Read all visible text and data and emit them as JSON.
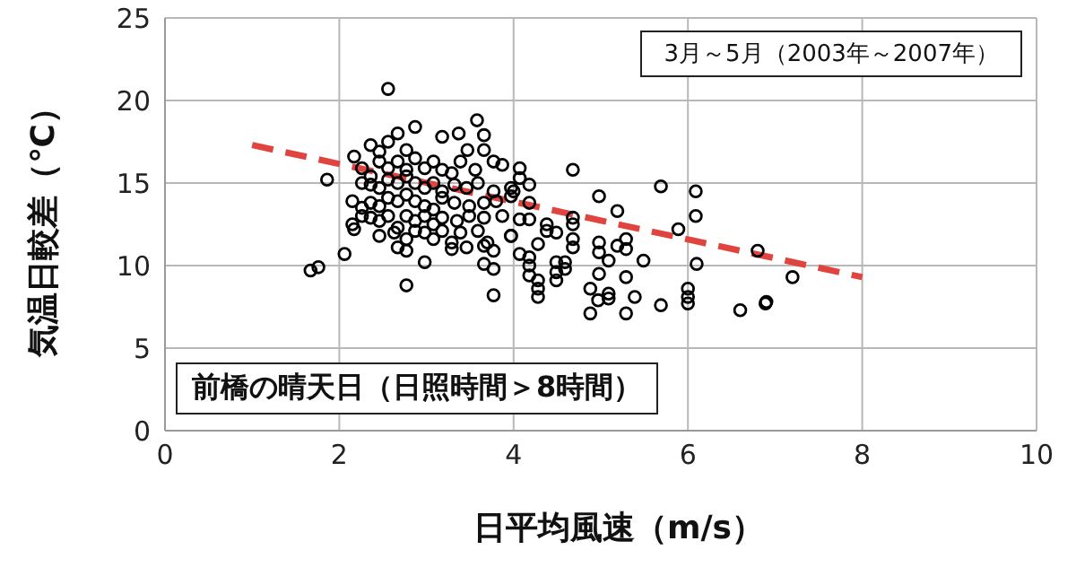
{
  "chart_data": {
    "type": "scatter",
    "xlabel": "日平均風速（m/s）",
    "ylabel": "気温日較差（℃）",
    "annotations": [
      "3月～5月（2003年～2007年）",
      "前橋の晴天日（日照時間＞8時間）"
    ],
    "xlim": [
      0,
      10
    ],
    "xticks": [
      0,
      2,
      4,
      6,
      8,
      10
    ],
    "ylim": [
      0,
      25
    ],
    "yticks": [
      0,
      5,
      10,
      15,
      20,
      25
    ],
    "grid": true,
    "marker": "circle",
    "series": [
      {
        "color": "#000000",
        "x": [
          1.67,
          1.76,
          1.86,
          2.06,
          2.56,
          2.77,
          2.98,
          3.77,
          3.58,
          2.36,
          2.46,
          2.56,
          2.67,
          2.77,
          2.87,
          3.18,
          3.37,
          3.47,
          3.66,
          2.17,
          2.26,
          2.36,
          2.46,
          2.56,
          2.67,
          2.77,
          2.87,
          2.98,
          3.08,
          3.18,
          3.29,
          3.39,
          3.56,
          3.66,
          3.77,
          3.87,
          2.26,
          2.36,
          2.46,
          2.56,
          2.67,
          2.77,
          2.87,
          2.98,
          3.08,
          3.18,
          3.32,
          3.46,
          3.59,
          3.77,
          4.0,
          2.15,
          2.26,
          2.36,
          2.46,
          2.56,
          2.67,
          2.77,
          2.87,
          2.98,
          3.08,
          3.18,
          3.32,
          3.49,
          3.66,
          3.8,
          2.15,
          2.26,
          2.36,
          2.46,
          2.56,
          2.67,
          2.77,
          2.87,
          2.98,
          3.08,
          3.18,
          3.35,
          3.49,
          3.66,
          3.87,
          2.17,
          2.46,
          2.63,
          2.77,
          2.87,
          2.98,
          3.08,
          3.18,
          3.29,
          3.39,
          3.59,
          3.7,
          3.97,
          2.67,
          2.77,
          3.29,
          3.46,
          3.66,
          3.77,
          3.66,
          3.77,
          4.68,
          5.69,
          6.09,
          6.09,
          4.98,
          5.19,
          5.89,
          6.8,
          6.1,
          5.49,
          6.6,
          6.89,
          5.69,
          6.0,
          6.0,
          6.0,
          5.29,
          4.88,
          5.39,
          5.09,
          5.09,
          4.97,
          4.88,
          5.29,
          4.98,
          5.09,
          4.98,
          4.98,
          5.19,
          5.29,
          5.29,
          4.68,
          4.68,
          4.68,
          4.68,
          4.49,
          4.49,
          4.49,
          4.49,
          4.28,
          4.28,
          4.28,
          4.18,
          4.07,
          4.18,
          4.18,
          4.38,
          4.38,
          4.28,
          4.18,
          4.07,
          3.97,
          4.18,
          4.18,
          4.07,
          4.07,
          3.97,
          3.97,
          4.59,
          4.59,
          7.2,
          6.9
        ],
        "values": [
          9.7,
          9.9,
          15.2,
          10.7,
          20.7,
          8.8,
          10.2,
          8.2,
          18.8,
          17.3,
          16.9,
          17.5,
          18.0,
          17.0,
          18.4,
          17.8,
          18.0,
          17.0,
          17.9,
          16.6,
          15.9,
          15.4,
          16.3,
          15.9,
          16.3,
          15.8,
          16.5,
          15.9,
          16.3,
          15.8,
          15.6,
          16.3,
          15.8,
          17.0,
          16.3,
          16.1,
          15.0,
          14.9,
          14.7,
          15.2,
          15.0,
          15.4,
          15.0,
          14.7,
          15.0,
          14.5,
          14.9,
          14.7,
          15.0,
          14.5,
          14.5,
          13.9,
          13.5,
          13.8,
          13.6,
          14.1,
          13.9,
          14.3,
          13.9,
          13.6,
          13.4,
          14.1,
          13.8,
          13.6,
          13.8,
          13.9,
          12.5,
          13.0,
          12.9,
          12.7,
          13.0,
          12.3,
          13.0,
          12.7,
          13.0,
          12.5,
          12.9,
          12.7,
          13.0,
          12.9,
          13.0,
          12.2,
          11.8,
          12.0,
          11.6,
          12.1,
          12.0,
          11.6,
          12.1,
          11.4,
          12.0,
          12.1,
          11.4,
          11.8,
          11.1,
          10.9,
          11.0,
          11.1,
          11.2,
          10.9,
          10.1,
          9.8,
          15.8,
          14.8,
          14.5,
          13.0,
          14.2,
          13.3,
          12.2,
          10.9,
          10.1,
          10.3,
          7.3,
          7.7,
          7.6,
          8.6,
          8.1,
          7.7,
          7.1,
          7.1,
          8.1,
          8.3,
          8.0,
          7.9,
          8.6,
          9.3,
          9.5,
          10.3,
          11.4,
          10.8,
          11.2,
          11.6,
          11.0,
          12.9,
          12.5,
          11.6,
          11.1,
          12.0,
          10.2,
          9.6,
          9.1,
          9.1,
          8.6,
          8.1,
          10.5,
          10.7,
          9.4,
          10.0,
          12.5,
          12.1,
          11.3,
          12.8,
          12.8,
          11.8,
          13.8,
          14.9,
          15.9,
          15.3,
          14.7,
          14.2,
          10.2,
          9.8,
          9.3,
          7.8
        ]
      },
      {
        "type": "line",
        "color": "#e0443e",
        "line_style": "dashed",
        "marker": "none",
        "x": [
          1,
          8
        ],
        "values": [
          17.3,
          9.3
        ]
      }
    ]
  }
}
